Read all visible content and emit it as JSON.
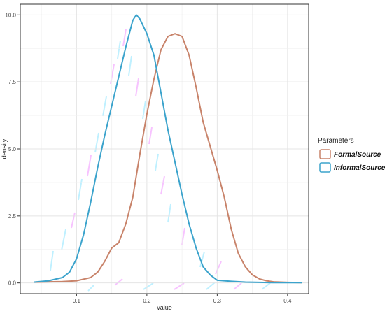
{
  "chart_data": {
    "type": "line",
    "title": "",
    "xlabel": "value",
    "ylabel": "density",
    "xlim": [
      0.02,
      0.43
    ],
    "ylim": [
      -0.4,
      10.4
    ],
    "x_ticks": [
      0.1,
      0.2,
      0.3,
      0.4
    ],
    "x_tick_labels": [
      "0.1",
      "0.2",
      "0.3",
      "0.4"
    ],
    "y_ticks": [
      0.0,
      2.5,
      5.0,
      7.5,
      10.0
    ],
    "y_tick_labels": [
      "0.0",
      "2.5",
      "5.0",
      "7.5",
      "10.0"
    ],
    "grid": true,
    "legend": {
      "title": "Parameters",
      "placement": "right"
    },
    "series": [
      {
        "name": "FormalSource",
        "color": "#c8836a",
        "x": [
          0.04,
          0.06,
          0.08,
          0.1,
          0.12,
          0.13,
          0.14,
          0.15,
          0.16,
          0.17,
          0.18,
          0.19,
          0.2,
          0.21,
          0.22,
          0.23,
          0.24,
          0.25,
          0.26,
          0.27,
          0.28,
          0.29,
          0.3,
          0.31,
          0.32,
          0.33,
          0.34,
          0.35,
          0.36,
          0.37,
          0.38,
          0.4,
          0.42
        ],
        "values": [
          0.03,
          0.04,
          0.05,
          0.08,
          0.2,
          0.4,
          0.8,
          1.3,
          1.5,
          2.2,
          3.2,
          4.8,
          6.3,
          7.6,
          8.7,
          9.2,
          9.3,
          9.2,
          8.5,
          7.3,
          6.0,
          5.1,
          4.2,
          3.2,
          2.0,
          1.1,
          0.6,
          0.3,
          0.15,
          0.08,
          0.04,
          0.02,
          0.01
        ]
      },
      {
        "name": "InformalSource",
        "color": "#3ba3cc",
        "x": [
          0.04,
          0.06,
          0.08,
          0.09,
          0.1,
          0.11,
          0.12,
          0.13,
          0.14,
          0.15,
          0.16,
          0.17,
          0.18,
          0.185,
          0.19,
          0.2,
          0.21,
          0.22,
          0.23,
          0.24,
          0.25,
          0.26,
          0.27,
          0.28,
          0.29,
          0.3,
          0.32,
          0.34,
          0.36,
          0.38,
          0.4,
          0.42
        ],
        "values": [
          0.03,
          0.08,
          0.2,
          0.4,
          0.9,
          1.8,
          3.0,
          4.3,
          5.5,
          6.6,
          7.7,
          8.8,
          9.8,
          10.0,
          9.85,
          9.3,
          8.5,
          7.1,
          5.7,
          4.5,
          3.3,
          2.2,
          1.3,
          0.6,
          0.3,
          0.1,
          0.06,
          0.03,
          0.02,
          0.01,
          0.01,
          0.01
        ]
      }
    ]
  }
}
